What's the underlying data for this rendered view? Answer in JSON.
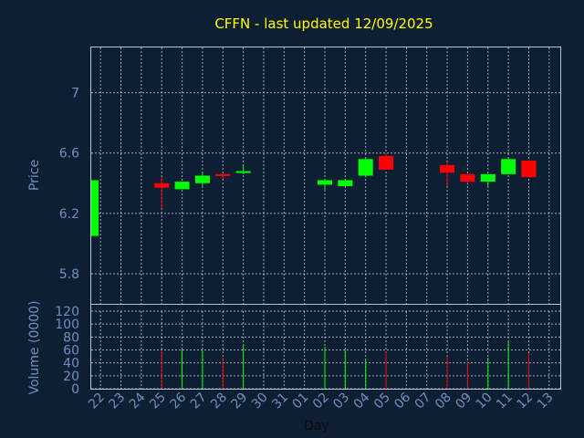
{
  "chart_data": {
    "type": "candlestick",
    "title": "CFFN - last updated 12/09/2025",
    "xlabel": "Day",
    "price_ylabel": "Price",
    "volume_ylabel": "Volume (0000)",
    "days": [
      "22",
      "23",
      "24",
      "25",
      "26",
      "27",
      "28",
      "29",
      "30",
      "31",
      "01",
      "02",
      "03",
      "04",
      "05",
      "06",
      "07",
      "08",
      "09",
      "10",
      "11",
      "12",
      "13"
    ],
    "price_ylim": [
      5.6,
      7.3
    ],
    "price_ticks": [
      5.8,
      6.2,
      6.6,
      7
    ],
    "volume_ylim": [
      0,
      120
    ],
    "volume_ticks": [
      0,
      20,
      40,
      60,
      80,
      100,
      120
    ],
    "candles": [
      {
        "day": "22",
        "open": 6.05,
        "high": 6.42,
        "low": 6.05,
        "close": 6.42,
        "volume": 0
      },
      {
        "day": "25",
        "open": 6.4,
        "high": 6.44,
        "low": 6.23,
        "close": 6.37,
        "volume": 58
      },
      {
        "day": "26",
        "open": 6.36,
        "high": 6.41,
        "low": 6.36,
        "close": 6.41,
        "volume": 62
      },
      {
        "day": "27",
        "open": 6.4,
        "high": 6.47,
        "low": 6.38,
        "close": 6.45,
        "volume": 60
      },
      {
        "day": "28",
        "open": 6.46,
        "high": 6.46,
        "low": 6.43,
        "close": 6.45,
        "volume": 48
      },
      {
        "day": "29",
        "open": 6.47,
        "high": 6.52,
        "low": 6.46,
        "close": 6.48,
        "volume": 68
      },
      {
        "day": "02",
        "open": 6.39,
        "high": 6.43,
        "low": 6.35,
        "close": 6.42,
        "volume": 65
      },
      {
        "day": "03",
        "open": 6.38,
        "high": 6.43,
        "low": 6.38,
        "close": 6.42,
        "volume": 60
      },
      {
        "day": "04",
        "open": 6.45,
        "high": 6.56,
        "low": 6.44,
        "close": 6.56,
        "volume": 45
      },
      {
        "day": "05",
        "open": 6.58,
        "high": 6.6,
        "low": 6.49,
        "close": 6.49,
        "volume": 57
      },
      {
        "day": "08",
        "open": 6.52,
        "high": 6.54,
        "low": 6.38,
        "close": 6.47,
        "volume": 50
      },
      {
        "day": "09",
        "open": 6.46,
        "high": 6.46,
        "low": 6.4,
        "close": 6.41,
        "volume": 42
      },
      {
        "day": "10",
        "open": 6.41,
        "high": 6.46,
        "low": 6.38,
        "close": 6.46,
        "volume": 48
      },
      {
        "day": "11",
        "open": 6.46,
        "high": 6.56,
        "low": 6.46,
        "close": 6.56,
        "volume": 73
      },
      {
        "day": "12",
        "open": 6.55,
        "high": 6.55,
        "low": 6.44,
        "close": 6.44,
        "volume": 55
      }
    ],
    "colors": {
      "up": "#00ff00",
      "down": "#ff0000",
      "background": "#0f1f33",
      "title": "#ffff00",
      "axis_text": "#6f8fbf"
    }
  }
}
